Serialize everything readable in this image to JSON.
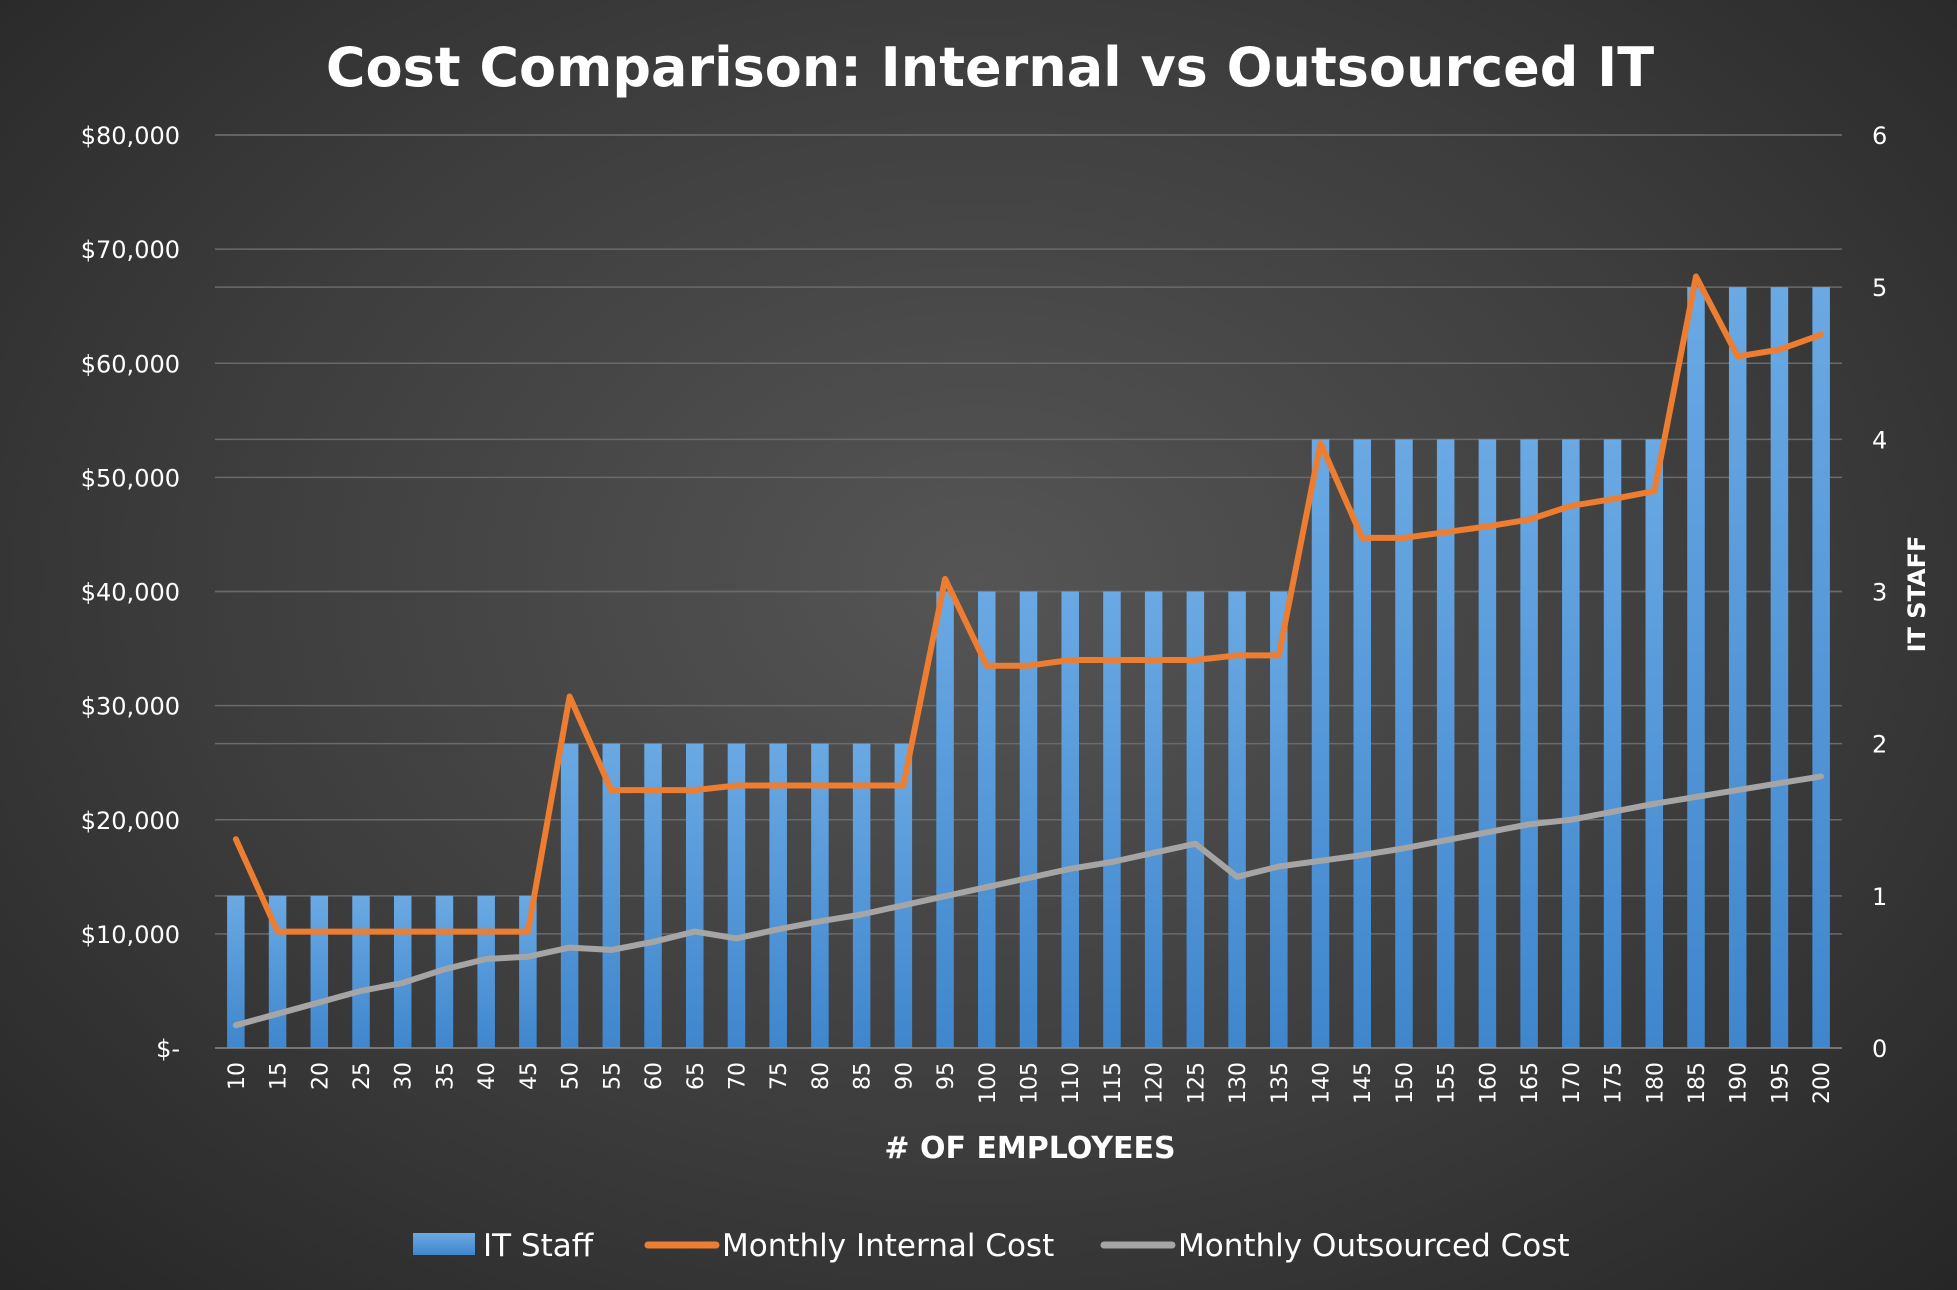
{
  "chart_data": {
    "type": "bar",
    "title": "Cost Comparison: Internal vs Outsourced IT",
    "xlabel": "# OF EMPLOYEES",
    "ylabel": "",
    "y2label": "IT STAFF",
    "ylim": [
      0,
      80000
    ],
    "y2lim": [
      0,
      6
    ],
    "yticks": [
      "$-",
      "$10,000",
      "$20,000",
      "$30,000",
      "$40,000",
      "$50,000",
      "$60,000",
      "$70,000",
      "$80,000"
    ],
    "y2ticks": [
      "0",
      "1",
      "2",
      "3",
      "4",
      "5",
      "6"
    ],
    "categories": [
      "10",
      "15",
      "20",
      "25",
      "30",
      "35",
      "40",
      "45",
      "50",
      "55",
      "60",
      "65",
      "70",
      "75",
      "80",
      "85",
      "90",
      "95",
      "100",
      "105",
      "110",
      "115",
      "120",
      "125",
      "130",
      "135",
      "140",
      "145",
      "150",
      "155",
      "160",
      "165",
      "170",
      "175",
      "180",
      "185",
      "190",
      "195",
      "200"
    ],
    "grid": true,
    "legend_position": "bottom",
    "series": [
      {
        "name": "IT Staff",
        "type": "bar",
        "axis": "right",
        "color": "#5b9bd5",
        "values": [
          1,
          1,
          1,
          1,
          1,
          1,
          1,
          1,
          2,
          2,
          2,
          2,
          2,
          2,
          2,
          2,
          2,
          3,
          3,
          3,
          3,
          3,
          3,
          3,
          3,
          3,
          4,
          4,
          4,
          4,
          4,
          4,
          4,
          4,
          4,
          5,
          5,
          5,
          5
        ]
      },
      {
        "name": "Monthly Internal Cost",
        "type": "line",
        "axis": "left",
        "color": "#ed7d31",
        "values": [
          18300,
          10200,
          10200,
          10200,
          10200,
          10200,
          10200,
          10200,
          30800,
          22600,
          22600,
          22600,
          23000,
          23000,
          23000,
          23000,
          23000,
          41100,
          33500,
          33500,
          34000,
          34000,
          34000,
          34000,
          34400,
          34400,
          53000,
          44700,
          44700,
          45200,
          45700,
          46300,
          47500,
          48100,
          48800,
          67600,
          60600,
          61200,
          62500
        ]
      },
      {
        "name": "Monthly Outsourced Cost",
        "type": "line",
        "axis": "left",
        "color": "#a5a5a5",
        "values": [
          2000,
          3000,
          4000,
          5000,
          5700,
          6900,
          7800,
          8000,
          8800,
          8600,
          9300,
          10200,
          9600,
          10400,
          11100,
          11700,
          12500,
          13300,
          14100,
          14900,
          15700,
          16300,
          17100,
          17900,
          15000,
          15900,
          16400,
          16900,
          17500,
          18200,
          18900,
          19600,
          20000,
          20700,
          21400,
          22000,
          22600,
          23200,
          23800
        ]
      }
    ]
  }
}
